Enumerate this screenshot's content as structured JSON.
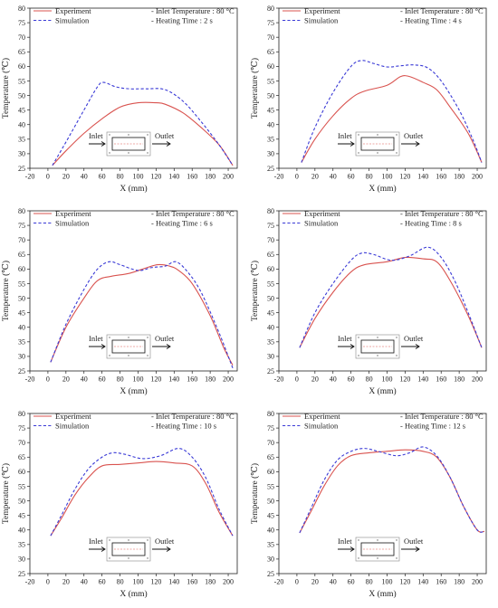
{
  "chart_data": [
    {
      "type": "line",
      "xlabel": "X (mm)",
      "ylabel": "Temperature (℃)",
      "xlim": [
        -20,
        210
      ],
      "ylim": [
        25,
        80
      ],
      "xticks": [
        "-20",
        "0",
        "20",
        "40",
        "60",
        "80",
        "100",
        "120",
        "140",
        "160",
        "180",
        "200"
      ],
      "yticks": [
        "25",
        "30",
        "35",
        "40",
        "45",
        "50",
        "55",
        "60",
        "65",
        "70",
        "75",
        "80"
      ],
      "legend": [
        "Experiment",
        "Simulation"
      ],
      "annotations": [
        "- Inlet Temperature : 80 °C",
        "- Heating Time : 2 s"
      ],
      "inset": {
        "inlet": "Inlet",
        "outlet": "Outlet"
      },
      "series": [
        {
          "name": "Experiment",
          "color": "#d9534f",
          "style": "solid",
          "points": [
            [
              5,
              26
            ],
            [
              20,
              31
            ],
            [
              40,
              37
            ],
            [
              60,
              42
            ],
            [
              80,
              46
            ],
            [
              100,
              47.5
            ],
            [
              120,
              47.5
            ],
            [
              130,
              47
            ],
            [
              150,
              44
            ],
            [
              170,
              39
            ],
            [
              190,
              33
            ],
            [
              205,
              26
            ]
          ]
        },
        {
          "name": "Simulation",
          "color": "#3a3ad6",
          "style": "dashed",
          "points": [
            [
              5,
              26
            ],
            [
              20,
              34
            ],
            [
              40,
              45
            ],
            [
              55,
              53
            ],
            [
              62,
              54.5
            ],
            [
              75,
              53
            ],
            [
              90,
              52.3
            ],
            [
              110,
              52.3
            ],
            [
              130,
              52
            ],
            [
              150,
              48
            ],
            [
              170,
              41
            ],
            [
              190,
              33
            ],
            [
              205,
              26
            ]
          ]
        }
      ]
    },
    {
      "type": "line",
      "xlabel": "X (mm)",
      "ylabel": "Temperature (℃)",
      "xlim": [
        -20,
        210
      ],
      "ylim": [
        25,
        80
      ],
      "xticks": [
        "-20",
        "0",
        "20",
        "40",
        "60",
        "80",
        "100",
        "120",
        "140",
        "160",
        "180",
        "200"
      ],
      "yticks": [
        "25",
        "30",
        "35",
        "40",
        "45",
        "50",
        "55",
        "60",
        "65",
        "70",
        "75",
        "80"
      ],
      "legend": [
        "Experiment",
        "Simulation"
      ],
      "annotations": [
        "- Inlet Temperature : 80 °C",
        "- Heating Time : 4 s"
      ],
      "inset": {
        "inlet": "Inlet",
        "outlet": "Outlet"
      },
      "series": [
        {
          "name": "Experiment",
          "color": "#d9534f",
          "style": "solid",
          "points": [
            [
              5,
              27
            ],
            [
              20,
              35
            ],
            [
              40,
              43
            ],
            [
              60,
              49
            ],
            [
              75,
              51.5
            ],
            [
              100,
              53.5
            ],
            [
              115,
              56.5
            ],
            [
              125,
              56.5
            ],
            [
              140,
              54.5
            ],
            [
              155,
              52
            ],
            [
              170,
              46
            ],
            [
              190,
              37
            ],
            [
              205,
              27
            ]
          ]
        },
        {
          "name": "Simulation",
          "color": "#3a3ad6",
          "style": "dashed",
          "points": [
            [
              5,
              27
            ],
            [
              20,
              39
            ],
            [
              40,
              51
            ],
            [
              60,
              60
            ],
            [
              72,
              62
            ],
            [
              85,
              61
            ],
            [
              100,
              59.8
            ],
            [
              115,
              60.2
            ],
            [
              130,
              60.5
            ],
            [
              145,
              59.5
            ],
            [
              160,
              55
            ],
            [
              180,
              45
            ],
            [
              195,
              35
            ],
            [
              205,
              27
            ]
          ]
        }
      ]
    },
    {
      "type": "line",
      "xlabel": "X (mm)",
      "ylabel": "Temperature (℃)",
      "xlim": [
        -20,
        210
      ],
      "ylim": [
        25,
        80
      ],
      "xticks": [
        "-20",
        "0",
        "20",
        "40",
        "60",
        "80",
        "100",
        "120",
        "140",
        "160",
        "180",
        "200"
      ],
      "yticks": [
        "25",
        "30",
        "35",
        "40",
        "45",
        "50",
        "55",
        "60",
        "65",
        "70",
        "75",
        "80"
      ],
      "legend": [
        "Experiment",
        "Simulation"
      ],
      "annotations": [
        "- Inlet Temperature : 80 °C",
        "- Heating Time : 6 s"
      ],
      "inset": {
        "inlet": "Inlet",
        "outlet": "Outlet"
      },
      "series": [
        {
          "name": "Experiment",
          "color": "#d9534f",
          "style": "solid",
          "points": [
            [
              3,
              28
            ],
            [
              20,
              40
            ],
            [
              40,
              50
            ],
            [
              55,
              56
            ],
            [
              70,
              57.5
            ],
            [
              90,
              58.5
            ],
            [
              110,
              60.5
            ],
            [
              122,
              61.5
            ],
            [
              135,
              61
            ],
            [
              145,
              59.5
            ],
            [
              160,
              55
            ],
            [
              180,
              44
            ],
            [
              195,
              33
            ],
            [
              205,
              27
            ]
          ]
        },
        {
          "name": "Simulation",
          "color": "#3a3ad6",
          "style": "dashed",
          "points": [
            [
              3,
              28
            ],
            [
              20,
              41
            ],
            [
              40,
              53
            ],
            [
              55,
              60
            ],
            [
              68,
              62.5
            ],
            [
              80,
              61.5
            ],
            [
              100,
              59.5
            ],
            [
              115,
              60.5
            ],
            [
              130,
              61
            ],
            [
              142,
              62.5
            ],
            [
              155,
              59
            ],
            [
              170,
              52
            ],
            [
              190,
              38
            ],
            [
              205,
              26
            ]
          ]
        }
      ]
    },
    {
      "type": "line",
      "xlabel": "X (mm)",
      "ylabel": "Temperature (℃)",
      "xlim": [
        -20,
        210
      ],
      "ylim": [
        25,
        80
      ],
      "xticks": [
        "-20",
        "0",
        "20",
        "40",
        "60",
        "80",
        "100",
        "120",
        "140",
        "160",
        "180",
        "200"
      ],
      "yticks": [
        "25",
        "30",
        "35",
        "40",
        "45",
        "50",
        "55",
        "60",
        "65",
        "70",
        "75",
        "80"
      ],
      "legend": [
        "Experiment",
        "Simulation"
      ],
      "annotations": [
        "- Inlet Temperature : 80 °C",
        "- Heating Time : 8 s"
      ],
      "inset": {
        "inlet": "Inlet",
        "outlet": "Outlet"
      },
      "series": [
        {
          "name": "Experiment",
          "color": "#d9534f",
          "style": "solid",
          "points": [
            [
              3,
              33
            ],
            [
              20,
              43
            ],
            [
              40,
              52
            ],
            [
              60,
              59
            ],
            [
              75,
              61.5
            ],
            [
              100,
              62.5
            ],
            [
              120,
              64
            ],
            [
              140,
              63.5
            ],
            [
              155,
              62.5
            ],
            [
              170,
              56
            ],
            [
              190,
              44
            ],
            [
              205,
              33
            ]
          ]
        },
        {
          "name": "Simulation",
          "color": "#3a3ad6",
          "style": "dashed",
          "points": [
            [
              3,
              33
            ],
            [
              20,
              45
            ],
            [
              40,
              55
            ],
            [
              60,
              63
            ],
            [
              72,
              65.5
            ],
            [
              85,
              65
            ],
            [
              105,
              63
            ],
            [
              125,
              64.5
            ],
            [
              145,
              67.5
            ],
            [
              160,
              64
            ],
            [
              175,
              56
            ],
            [
              190,
              45
            ],
            [
              205,
              33
            ]
          ]
        }
      ]
    },
    {
      "type": "line",
      "xlabel": "X (mm)",
      "ylabel": "Temperature (℃)",
      "xlim": [
        -20,
        210
      ],
      "ylim": [
        25,
        80
      ],
      "xticks": [
        "-20",
        "0",
        "20",
        "40",
        "60",
        "80",
        "100",
        "120",
        "140",
        "160",
        "180",
        "200"
      ],
      "yticks": [
        "25",
        "30",
        "35",
        "40",
        "45",
        "50",
        "55",
        "60",
        "65",
        "70",
        "75",
        "80"
      ],
      "legend": [
        "Experiment",
        "Simulation"
      ],
      "annotations": [
        "- Inlet Temperature : 80 °C",
        "- Heating Time : 10 s"
      ],
      "inset": {
        "inlet": "Inlet",
        "outlet": "Outlet"
      },
      "series": [
        {
          "name": "Experiment",
          "color": "#d9534f",
          "style": "solid",
          "points": [
            [
              3,
              38
            ],
            [
              15,
              44
            ],
            [
              30,
              52
            ],
            [
              45,
              58
            ],
            [
              60,
              62
            ],
            [
              80,
              62.5
            ],
            [
              100,
              63
            ],
            [
              120,
              63.5
            ],
            [
              140,
              63
            ],
            [
              160,
              62
            ],
            [
              175,
              56
            ],
            [
              190,
              46
            ],
            [
              205,
              38
            ]
          ]
        },
        {
          "name": "Simulation",
          "color": "#3a3ad6",
          "style": "dashed",
          "points": [
            [
              3,
              38
            ],
            [
              15,
              45
            ],
            [
              30,
              54
            ],
            [
              45,
              61
            ],
            [
              60,
              65
            ],
            [
              72,
              66.5
            ],
            [
              85,
              66
            ],
            [
              105,
              64.5
            ],
            [
              125,
              65.5
            ],
            [
              145,
              68
            ],
            [
              160,
              65
            ],
            [
              175,
              58
            ],
            [
              190,
              47
            ],
            [
              205,
              38
            ]
          ]
        }
      ]
    },
    {
      "type": "line",
      "xlabel": "X (mm)",
      "ylabel": "Temperature (℃)",
      "xlim": [
        -20,
        210
      ],
      "ylim": [
        25,
        80
      ],
      "xticks": [
        "-20",
        "0",
        "20",
        "40",
        "60",
        "80",
        "100",
        "120",
        "140",
        "160",
        "180",
        "200"
      ],
      "yticks": [
        "25",
        "30",
        "35",
        "40",
        "45",
        "50",
        "55",
        "60",
        "65",
        "70",
        "75",
        "80"
      ],
      "legend": [
        "Experiment",
        "Simulation"
      ],
      "annotations": [
        "- Inlet Temperature : 80 °C",
        "- Heating Time : 12 s"
      ],
      "inset": {
        "inlet": "Inlet",
        "outlet": "Outlet"
      },
      "series": [
        {
          "name": "Experiment",
          "color": "#d9534f",
          "style": "solid",
          "points": [
            [
              3,
              39
            ],
            [
              15,
              46
            ],
            [
              30,
              55
            ],
            [
              45,
              62
            ],
            [
              60,
              65.5
            ],
            [
              80,
              66.5
            ],
            [
              100,
              67
            ],
            [
              120,
              67.5
            ],
            [
              140,
              67
            ],
            [
              155,
              65
            ],
            [
              170,
              58
            ],
            [
              185,
              48
            ],
            [
              200,
              40
            ],
            [
              208,
              39.5
            ]
          ]
        },
        {
          "name": "Simulation",
          "color": "#3a3ad6",
          "style": "dashed",
          "points": [
            [
              3,
              39
            ],
            [
              15,
              47
            ],
            [
              30,
              57
            ],
            [
              45,
              64
            ],
            [
              60,
              67
            ],
            [
              75,
              68
            ],
            [
              90,
              67
            ],
            [
              110,
              65.5
            ],
            [
              125,
              66.5
            ],
            [
              140,
              68.5
            ],
            [
              155,
              65.5
            ],
            [
              170,
              58
            ],
            [
              185,
              48
            ],
            [
              200,
              40
            ],
            [
              208,
              39.5
            ]
          ]
        }
      ]
    }
  ]
}
